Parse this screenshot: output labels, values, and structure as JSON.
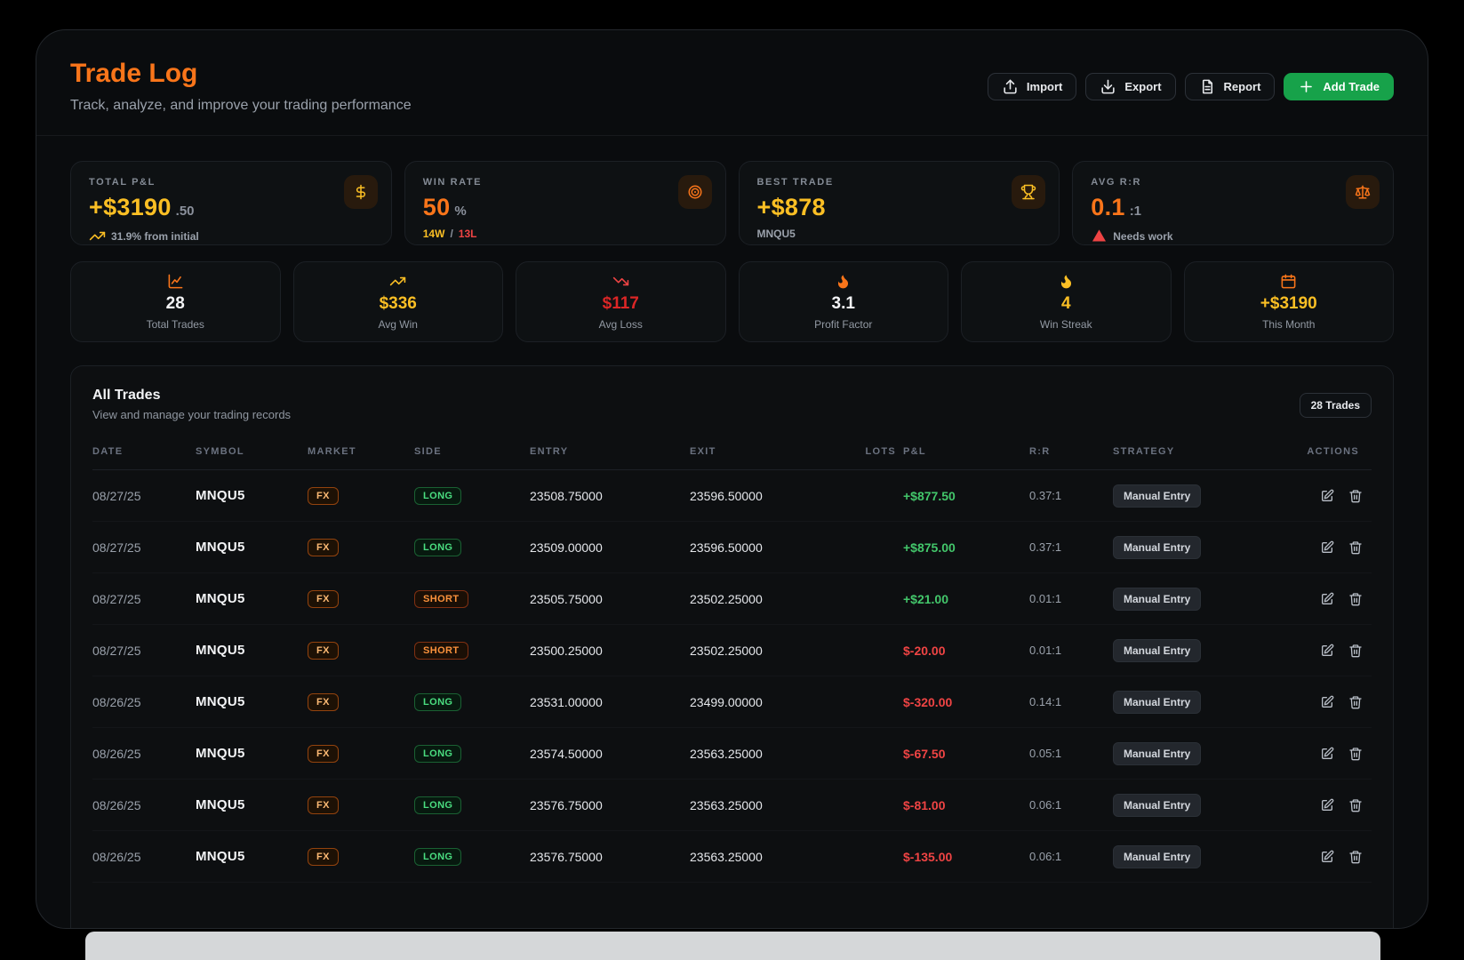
{
  "colors": {
    "orange": "#f9751a",
    "gold": "#fbbf24",
    "green": "#43c76b",
    "red": "#ef4444",
    "btn_green": "#17a24a"
  },
  "header": {
    "title": "Trade Log",
    "subtitle": "Track, analyze, and improve your trading performance",
    "buttons": {
      "import": "Import",
      "export": "Export",
      "report": "Report",
      "add_trade": "Add Trade"
    }
  },
  "stat_cards": [
    {
      "label": "TOTAL P&L",
      "value": "+$3190",
      "suffix": ".50",
      "sub": "31.9% from initial",
      "icon": "dollar-icon"
    },
    {
      "label": "WIN RATE",
      "value": "50",
      "suffix": "%",
      "sub_win": "14W",
      "sub_sep": "/",
      "sub_loss": "13L",
      "icon": "target-icon"
    },
    {
      "label": "BEST TRADE",
      "value": "+$878",
      "suffix": "",
      "sub": "MNQU5",
      "icon": "trophy-icon"
    },
    {
      "label": "AVG R:R",
      "value": "0.1",
      "suffix": ":1",
      "sub": "Needs work",
      "icon": "scale-icon"
    }
  ],
  "mini_cards": [
    {
      "icon": "chart-line-icon",
      "icon_color": "orange",
      "value": "28",
      "value_color": "white",
      "label": "Total Trades"
    },
    {
      "icon": "trend-up-icon",
      "icon_color": "gold",
      "value": "$336",
      "value_color": "gold",
      "label": "Avg Win"
    },
    {
      "icon": "trend-down-icon",
      "icon_color": "red",
      "value": "$117",
      "value_color": "red",
      "label": "Avg Loss"
    },
    {
      "icon": "flame-icon",
      "icon_color": "orange",
      "value": "3.1",
      "value_color": "white",
      "label": "Profit Factor"
    },
    {
      "icon": "flame-icon",
      "icon_color": "gold",
      "value": "4",
      "value_color": "gold",
      "label": "Win Streak"
    },
    {
      "icon": "calendar-icon",
      "icon_color": "orange",
      "value": "+$3190",
      "value_color": "gold",
      "label": "This Month"
    }
  ],
  "table": {
    "title": "All Trades",
    "subtitle": "View and manage your trading records",
    "badge": "28 Trades",
    "columns": [
      "DATE",
      "SYMBOL",
      "MARKET",
      "SIDE",
      "ENTRY",
      "EXIT",
      "LOTS",
      "P&L",
      "R:R",
      "STRATEGY",
      "ACTIONS"
    ],
    "rows": [
      {
        "date": "08/27/25",
        "symbol": "MNQU5",
        "market": "FX",
        "side": "LONG",
        "entry": "23508.75000",
        "exit": "23596.50000",
        "lots": "",
        "pnl": "+$877.50",
        "pnl_positive": true,
        "rr": "0.37:1",
        "strategy": "Manual Entry"
      },
      {
        "date": "08/27/25",
        "symbol": "MNQU5",
        "market": "FX",
        "side": "LONG",
        "entry": "23509.00000",
        "exit": "23596.50000",
        "lots": "",
        "pnl": "+$875.00",
        "pnl_positive": true,
        "rr": "0.37:1",
        "strategy": "Manual Entry"
      },
      {
        "date": "08/27/25",
        "symbol": "MNQU5",
        "market": "FX",
        "side": "SHORT",
        "entry": "23505.75000",
        "exit": "23502.25000",
        "lots": "",
        "pnl": "+$21.00",
        "pnl_positive": true,
        "rr": "0.01:1",
        "strategy": "Manual Entry"
      },
      {
        "date": "08/27/25",
        "symbol": "MNQU5",
        "market": "FX",
        "side": "SHORT",
        "entry": "23500.25000",
        "exit": "23502.25000",
        "lots": "",
        "pnl": "$-20.00",
        "pnl_positive": false,
        "rr": "0.01:1",
        "strategy": "Manual Entry"
      },
      {
        "date": "08/26/25",
        "symbol": "MNQU5",
        "market": "FX",
        "side": "LONG",
        "entry": "23531.00000",
        "exit": "23499.00000",
        "lots": "",
        "pnl": "$-320.00",
        "pnl_positive": false,
        "rr": "0.14:1",
        "strategy": "Manual Entry"
      },
      {
        "date": "08/26/25",
        "symbol": "MNQU5",
        "market": "FX",
        "side": "LONG",
        "entry": "23574.50000",
        "exit": "23563.25000",
        "lots": "",
        "pnl": "$-67.50",
        "pnl_positive": false,
        "rr": "0.05:1",
        "strategy": "Manual Entry"
      },
      {
        "date": "08/26/25",
        "symbol": "MNQU5",
        "market": "FX",
        "side": "LONG",
        "entry": "23576.75000",
        "exit": "23563.25000",
        "lots": "",
        "pnl": "$-81.00",
        "pnl_positive": false,
        "rr": "0.06:1",
        "strategy": "Manual Entry"
      },
      {
        "date": "08/26/25",
        "symbol": "MNQU5",
        "market": "FX",
        "side": "LONG",
        "entry": "23576.75000",
        "exit": "23563.25000",
        "lots": "",
        "pnl": "$-135.00",
        "pnl_positive": false,
        "rr": "0.06:1",
        "strategy": "Manual Entry"
      }
    ]
  }
}
